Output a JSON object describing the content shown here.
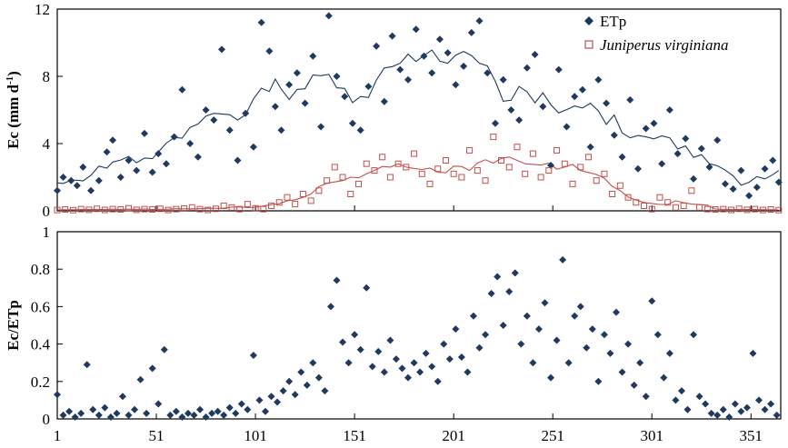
{
  "chart_data": [
    {
      "type": "scatter",
      "panel": "top",
      "ylabel": "Ec (mm d",
      "ylabel_sup": "-1",
      "ylabel_close": ")",
      "xlim": [
        1,
        366
      ],
      "ylim": [
        0,
        12
      ],
      "yticks": [
        "0",
        "4",
        "8",
        "12"
      ],
      "ytick_values": [
        0,
        4,
        8,
        12
      ],
      "xticks": [
        "1",
        "51",
        "101",
        "151",
        "201",
        "251",
        "301",
        "351"
      ],
      "xtick_values": [
        1,
        51,
        101,
        151,
        201,
        251,
        301,
        351
      ],
      "legend_placement": "top-right",
      "series": [
        {
          "name": "ETp",
          "marker": "diamond",
          "color": "#1f3a5f",
          "x": [
            1,
            4,
            8,
            11,
            14,
            18,
            22,
            26,
            29,
            33,
            37,
            41,
            45,
            49,
            52,
            56,
            60,
            64,
            68,
            72,
            76,
            80,
            84,
            88,
            92,
            96,
            100,
            104,
            108,
            111,
            114,
            118,
            122,
            126,
            130,
            134,
            138,
            142,
            146,
            150,
            154,
            158,
            162,
            166,
            170,
            174,
            178,
            182,
            186,
            190,
            194,
            198,
            202,
            206,
            210,
            214,
            218,
            222,
            226,
            230,
            234,
            238,
            242,
            246,
            250,
            254,
            258,
            262,
            266,
            270,
            274,
            278,
            282,
            286,
            290,
            294,
            298,
            302,
            306,
            310,
            314,
            318,
            322,
            326,
            330,
            334,
            338,
            342,
            346,
            350,
            354,
            358,
            362,
            365
          ],
          "y": [
            1.2,
            2.0,
            1.8,
            1.5,
            2.6,
            1.2,
            1.8,
            3.5,
            4.2,
            2.0,
            3.0,
            2.4,
            4.6,
            2.3,
            3.4,
            2.8,
            4.4,
            7.2,
            4.0,
            3.2,
            6.0,
            5.4,
            9.6,
            4.8,
            3.0,
            5.8,
            3.8,
            11.2,
            9.5,
            6.2,
            4.8,
            7.5,
            8.2,
            6.4,
            9.2,
            5.0,
            11.6,
            8.0,
            6.8,
            5.2,
            4.8,
            7.4,
            9.8,
            6.5,
            10.4,
            8.4,
            7.8,
            10.8,
            9.2,
            8.2,
            10.2,
            9.4,
            7.5,
            8.6,
            10.6,
            11.3,
            8.2,
            5.2,
            7.8,
            6.0,
            5.4,
            8.5,
            9.3,
            6.2,
            2.7,
            8.4,
            5.0,
            6.8,
            7.2,
            3.8,
            7.8,
            6.4,
            4.5,
            3.2,
            6.6,
            2.5,
            4.9,
            5.2,
            2.8,
            6.0,
            3.4,
            4.3,
            1.9,
            3.7,
            2.6,
            4.2,
            1.6,
            1.3,
            2.4,
            0.9,
            1.4,
            2.5,
            3.0,
            1.7
          ]
        },
        {
          "name": "Juniperus virginiana",
          "marker": "square-open",
          "color": "#c0504d",
          "x": [
            1,
            5,
            9,
            13,
            17,
            21,
            25,
            29,
            33,
            37,
            41,
            45,
            49,
            53,
            57,
            61,
            65,
            69,
            73,
            77,
            81,
            85,
            89,
            93,
            97,
            101,
            105,
            109,
            113,
            117,
            121,
            125,
            129,
            133,
            137,
            141,
            145,
            149,
            153,
            157,
            161,
            165,
            169,
            173,
            177,
            181,
            185,
            189,
            193,
            197,
            201,
            205,
            209,
            213,
            217,
            221,
            225,
            229,
            233,
            237,
            241,
            245,
            249,
            253,
            257,
            261,
            265,
            269,
            273,
            277,
            281,
            285,
            289,
            293,
            297,
            301,
            305,
            309,
            313,
            317,
            321,
            325,
            329,
            333,
            337,
            341,
            345,
            349,
            353,
            357,
            361,
            365
          ],
          "y": [
            0.05,
            0.08,
            0.04,
            0.1,
            0.06,
            0.12,
            0.05,
            0.1,
            0.08,
            0.15,
            0.06,
            0.1,
            0.08,
            0.12,
            0.05,
            0.1,
            0.14,
            0.2,
            0.1,
            0.05,
            0.12,
            0.3,
            0.2,
            0.1,
            0.4,
            0.15,
            0.1,
            0.3,
            0.5,
            0.8,
            0.4,
            1.0,
            0.6,
            1.2,
            1.8,
            2.6,
            2.0,
            1.0,
            1.6,
            2.8,
            2.4,
            3.2,
            2.0,
            2.8,
            2.6,
            3.4,
            2.2,
            1.6,
            2.5,
            3.0,
            2.2,
            2.0,
            3.6,
            2.4,
            1.8,
            4.4,
            3.0,
            2.6,
            3.8,
            2.2,
            3.4,
            2.0,
            2.4,
            3.6,
            2.8,
            1.6,
            2.6,
            3.2,
            1.8,
            2.2,
            1.0,
            1.5,
            0.8,
            0.5,
            0.3,
            0.1,
            0.8,
            0.5,
            0.2,
            0.3,
            1.2,
            0.2,
            0.1,
            0.08,
            0.1,
            0.05,
            0.12,
            0.06,
            0.1,
            0.05,
            0.08,
            0.04
          ]
        }
      ]
    },
    {
      "type": "scatter",
      "panel": "bottom",
      "ylabel": "Ec/ETp",
      "xlim": [
        1,
        366
      ],
      "ylim": [
        0,
        1
      ],
      "yticks": [
        "0",
        "0.2",
        "0.4",
        "0.6",
        "0.8",
        "1"
      ],
      "ytick_values": [
        0,
        0.2,
        0.4,
        0.6,
        0.8,
        1
      ],
      "xticks": [
        "1",
        "51",
        "101",
        "151",
        "201",
        "251",
        "301",
        "351"
      ],
      "xtick_values": [
        1,
        51,
        101,
        151,
        201,
        251,
        301,
        351
      ],
      "series": [
        {
          "name": "Ec/ETp",
          "marker": "diamond",
          "color": "#1f3a5f",
          "x": [
            1,
            4,
            7,
            10,
            13,
            16,
            19,
            22,
            25,
            28,
            31,
            34,
            37,
            40,
            43,
            46,
            49,
            52,
            55,
            58,
            61,
            64,
            67,
            70,
            73,
            76,
            79,
            82,
            85,
            88,
            91,
            94,
            97,
            100,
            103,
            106,
            109,
            112,
            115,
            118,
            121,
            124,
            127,
            130,
            133,
            136,
            139,
            142,
            145,
            148,
            151,
            154,
            157,
            160,
            163,
            166,
            169,
            172,
            175,
            178,
            181,
            184,
            187,
            190,
            193,
            196,
            199,
            202,
            205,
            208,
            211,
            214,
            217,
            220,
            223,
            226,
            229,
            232,
            235,
            238,
            241,
            244,
            247,
            250,
            253,
            256,
            259,
            262,
            265,
            268,
            271,
            274,
            277,
            280,
            283,
            286,
            289,
            292,
            295,
            298,
            301,
            304,
            307,
            310,
            313,
            316,
            319,
            322,
            325,
            328,
            331,
            334,
            337,
            340,
            343,
            346,
            349,
            352,
            355,
            358,
            361,
            364
          ],
          "y": [
            0.13,
            0.02,
            0.04,
            0.01,
            0.03,
            0.29,
            0.05,
            0.02,
            0.06,
            0.01,
            0.03,
            0.12,
            0.02,
            0.05,
            0.21,
            0.03,
            0.27,
            0.08,
            0.37,
            0.02,
            0.04,
            0.01,
            0.03,
            0.02,
            0.05,
            0.01,
            0.03,
            0.04,
            0.02,
            0.06,
            0.03,
            0.08,
            0.05,
            0.34,
            0.1,
            0.04,
            0.12,
            0.09,
            0.15,
            0.2,
            0.13,
            0.25,
            0.18,
            0.3,
            0.22,
            0.15,
            0.6,
            0.74,
            0.41,
            0.3,
            0.45,
            0.37,
            0.7,
            0.28,
            0.36,
            0.25,
            0.42,
            0.32,
            0.27,
            0.22,
            0.3,
            0.25,
            0.35,
            0.28,
            0.2,
            0.4,
            0.32,
            0.48,
            0.33,
            0.25,
            0.55,
            0.38,
            0.45,
            0.67,
            0.76,
            0.5,
            0.68,
            0.78,
            0.4,
            0.55,
            0.3,
            0.48,
            0.62,
            0.22,
            0.42,
            0.85,
            0.3,
            0.55,
            0.6,
            0.38,
            0.48,
            0.2,
            0.45,
            0.35,
            0.57,
            0.25,
            0.4,
            0.18,
            0.3,
            0.12,
            0.63,
            0.45,
            0.22,
            0.35,
            0.1,
            0.15,
            0.05,
            0.45,
            0.12,
            0.08,
            0.03,
            0.02,
            0.05,
            0.01,
            0.08,
            0.04,
            0.06,
            0.35,
            0.1,
            0.05,
            0.08,
            0.02
          ]
        }
      ]
    }
  ]
}
